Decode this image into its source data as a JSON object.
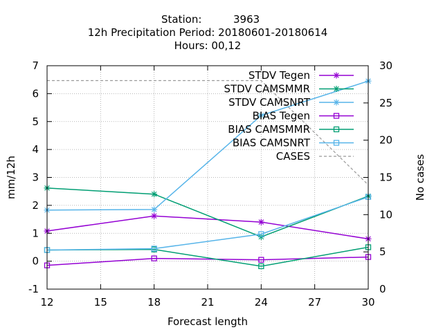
{
  "chart_data": {
    "type": "line",
    "title": {
      "station_label": "Station:",
      "station_value": "3963",
      "line2": "12h Precipitation   Period: 20180601-20180614",
      "line3": "Hours:  00,12"
    },
    "xlabel": "Forecast length",
    "ylabel": "mm/12h",
    "y2label": "No cases",
    "xlim": [
      12,
      30
    ],
    "ylim": [
      -1,
      7
    ],
    "y2lim": [
      0,
      30
    ],
    "x_ticks": [
      "12",
      "15",
      "18",
      "21",
      "24",
      "27",
      "30"
    ],
    "y_ticks": [
      "-1",
      "0",
      "1",
      "2",
      "3",
      "4",
      "5",
      "6",
      "7"
    ],
    "y2_ticks": [
      "0",
      "5",
      "10",
      "15",
      "20",
      "25",
      "30"
    ],
    "grid": true,
    "legend_position": "top-right",
    "series": [
      {
        "name": "STDV Tegen",
        "color": "#9400d3",
        "marker": "star",
        "dash": "",
        "axis": "y",
        "x": [
          12,
          18,
          24,
          30
        ],
        "values": [
          1.08,
          1.62,
          1.4,
          0.8
        ]
      },
      {
        "name": "STDV CAMSMMR",
        "color": "#009e73",
        "marker": "star",
        "dash": "",
        "axis": "y",
        "x": [
          12,
          18,
          24,
          30
        ],
        "values": [
          2.62,
          2.4,
          0.87,
          2.33
        ]
      },
      {
        "name": "STDV CAMSNRT",
        "color": "#56b4e9",
        "marker": "star",
        "dash": "",
        "axis": "y",
        "x": [
          12,
          18,
          24,
          30
        ],
        "values": [
          1.83,
          1.85,
          5.22,
          6.45
        ]
      },
      {
        "name": "BIAS Tegen",
        "color": "#9400d3",
        "marker": "square",
        "dash": "",
        "axis": "y",
        "x": [
          12,
          18,
          24,
          30
        ],
        "values": [
          -0.15,
          0.1,
          0.05,
          0.15
        ]
      },
      {
        "name": "BIAS CAMSMMR",
        "color": "#009e73",
        "marker": "square",
        "dash": "",
        "axis": "y",
        "x": [
          12,
          18,
          24,
          30
        ],
        "values": [
          0.4,
          0.42,
          -0.18,
          0.5
        ]
      },
      {
        "name": "BIAS CAMSNRT",
        "color": "#56b4e9",
        "marker": "square",
        "dash": "",
        "axis": "y",
        "x": [
          12,
          18,
          24,
          30
        ],
        "values": [
          0.4,
          0.45,
          0.97,
          2.3
        ]
      },
      {
        "name": "CASES",
        "color": "#999999",
        "marker": "none",
        "dash": "4,3",
        "axis": "y2",
        "x": [
          12,
          18,
          24,
          30
        ],
        "values": [
          28,
          28,
          28,
          14
        ]
      }
    ]
  }
}
